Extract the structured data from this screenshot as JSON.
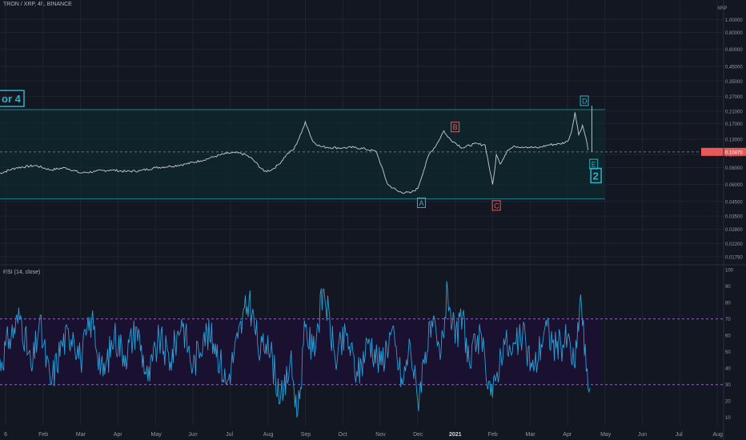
{
  "header": {
    "title": "TRON / XRP, 4h, BINANCE"
  },
  "price_axis": {
    "unit": "XRP"
  },
  "rsi_panel": {
    "label": "RSI (14, close)"
  },
  "colors": {
    "background": "#131722",
    "grid": "#1f2430",
    "price_line": "#c9ccd4",
    "rsi_line": "#2a9fd6",
    "rsi_band_fill": "#1c1032",
    "rsi_band_line": "#8e6ab8",
    "box_fill": "#0f2a2e",
    "box_line": "#23808a",
    "cyan_label": "#27b5c9",
    "red_label": "#e8595a",
    "current_price_line": "#6b6f7a",
    "price_badge": "#e8595a"
  },
  "chart_data": [
    {
      "type": "line",
      "title": "TRON / XRP, 4h, BINANCE",
      "scale": "log",
      "ylabel": "XRP",
      "yticks": [
        "1.00000",
        "0.80000",
        "0.60000",
        "0.45000",
        "0.35000",
        "0.27000",
        "0.21000",
        "0.17000",
        "0.13000",
        "0.10000",
        "0.08000",
        "0.06000",
        "0.04500",
        "0.03500",
        "0.02800",
        "0.02200",
        "0.01750"
      ],
      "ytick_values": [
        1.0,
        0.8,
        0.6,
        0.45,
        0.35,
        0.27,
        0.21,
        0.17,
        0.13,
        0.1,
        0.08,
        0.06,
        0.045,
        0.035,
        0.028,
        0.022,
        0.0175
      ],
      "ylim": [
        0.0155,
        1.15
      ],
      "xticks": [
        "6",
        "Feb",
        "Mar",
        "Apr",
        "May",
        "Jun",
        "Jul",
        "Aug",
        "Sep",
        "Oct",
        "Nov",
        "Dec",
        "2021",
        "Feb",
        "Mar",
        "Apr",
        "May",
        "Jun",
        "Jul",
        "Aug"
      ],
      "xtick_months": [
        0,
        1,
        2,
        3,
        4,
        5,
        6,
        7,
        8,
        9,
        10,
        11,
        12,
        13,
        14,
        15,
        16,
        17,
        18,
        19
      ],
      "x_unit": "months since Jan 2020",
      "series": [
        {
          "values_x": [
            -0.2,
            0.3,
            0.8,
            1.2,
            1.6,
            2.0,
            2.4,
            2.8,
            3.2,
            3.6,
            4.0,
            4.4,
            4.8,
            5.2,
            5.6,
            5.9,
            6.2,
            6.4,
            6.6,
            6.9,
            7.1,
            7.3,
            7.5,
            7.7,
            7.9,
            8.0,
            8.1,
            8.2,
            8.4,
            8.6,
            9.0,
            9.3,
            9.6,
            9.9,
            10.2,
            10.5,
            10.8,
            11.0,
            11.3,
            11.5,
            11.7,
            11.8,
            12.0,
            12.2,
            12.5,
            12.8,
            13.0,
            13.05,
            13.1,
            13.2,
            13.4,
            13.6,
            13.9,
            14.2,
            14.5,
            14.8,
            15.0,
            15.1,
            15.2,
            15.3,
            15.4,
            15.5,
            15.55
          ],
          "values_y": [
            0.072,
            0.08,
            0.083,
            0.077,
            0.08,
            0.073,
            0.075,
            0.077,
            0.075,
            0.076,
            0.08,
            0.082,
            0.085,
            0.09,
            0.097,
            0.102,
            0.103,
            0.1,
            0.092,
            0.075,
            0.077,
            0.085,
            0.1,
            0.11,
            0.145,
            0.175,
            0.148,
            0.125,
            0.115,
            0.113,
            0.112,
            0.113,
            0.11,
            0.105,
            0.06,
            0.053,
            0.052,
            0.056,
            0.1,
            0.118,
            0.15,
            0.135,
            0.122,
            0.112,
            0.12,
            0.118,
            0.06,
            0.074,
            0.1,
            0.085,
            0.108,
            0.115,
            0.114,
            0.112,
            0.118,
            0.12,
            0.125,
            0.145,
            0.205,
            0.14,
            0.165,
            0.13,
            0.108
          ],
          "name": ""
        }
      ],
      "current_price": 0.1047,
      "current_price_label": "0.10470",
      "box": {
        "ylim": [
          0.047,
          0.215
        ],
        "x_start": -0.2,
        "x_end": 16.0
      },
      "annotations": [
        {
          "text": "A",
          "x": 11.1,
          "y": 0.044,
          "color": "cyan"
        },
        {
          "text": "B",
          "x": 12.0,
          "y": 0.16,
          "color": "red"
        },
        {
          "text": "C",
          "x": 13.1,
          "y": 0.042,
          "color": "red"
        },
        {
          "text": "D",
          "x": 15.45,
          "y": 0.25,
          "color": "cyan"
        },
        {
          "text": "E",
          "x": 15.7,
          "y": 0.085,
          "color": "cyan"
        },
        {
          "text": "2",
          "x": 15.75,
          "y": 0.069,
          "color": "cyan"
        },
        {
          "text": "or 4",
          "x": 0.0,
          "y": 0.26,
          "color": "cyan"
        }
      ]
    },
    {
      "type": "line",
      "title": "RSI (14, close)",
      "ylim": [
        5,
        102
      ],
      "yticks": [
        10,
        20,
        30,
        40,
        50,
        60,
        70,
        80,
        90,
        100
      ],
      "bands": [
        30,
        70
      ],
      "x_unit": "months since Jan 2020",
      "series": [
        {
          "name": "",
          "values_x": [
            -0.2,
            0.1,
            0.4,
            0.7,
            0.9,
            1.2,
            1.5,
            1.8,
            2.0,
            2.3,
            2.6,
            2.9,
            3.2,
            3.5,
            3.8,
            4.1,
            4.4,
            4.7,
            5.0,
            5.3,
            5.6,
            5.9,
            6.2,
            6.5,
            6.8,
            7.0,
            7.2,
            7.4,
            7.6,
            7.8,
            8.0,
            8.2,
            8.5,
            8.8,
            9.1,
            9.4,
            9.7,
            10.0,
            10.3,
            10.6,
            10.8,
            11.0,
            11.2,
            11.4,
            11.6,
            11.8,
            12.0,
            12.2,
            12.4,
            12.6,
            12.8,
            13.0,
            13.1,
            13.3,
            13.5,
            13.8,
            14.1,
            14.4,
            14.7,
            15.0,
            15.2,
            15.35,
            15.5,
            15.6
          ],
          "values_y": [
            40,
            58,
            72,
            38,
            68,
            30,
            55,
            62,
            45,
            70,
            35,
            60,
            48,
            65,
            32,
            58,
            44,
            70,
            40,
            62,
            55,
            30,
            58,
            82,
            48,
            60,
            35,
            20,
            45,
            12,
            65,
            50,
            88,
            45,
            60,
            35,
            58,
            42,
            62,
            30,
            55,
            20,
            50,
            65,
            45,
            88,
            55,
            72,
            40,
            60,
            45,
            22,
            35,
            58,
            48,
            60,
            38,
            65,
            52,
            58,
            40,
            85,
            38,
            28
          ]
        }
      ]
    }
  ]
}
